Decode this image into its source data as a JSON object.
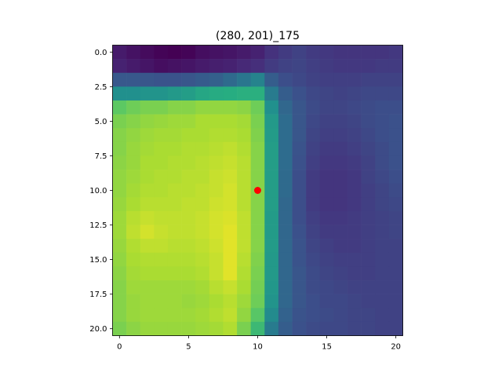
{
  "chart_data": {
    "type": "heatmap",
    "title": "(280, 201)_175",
    "xlabel": "",
    "ylabel": "",
    "colormap": "viridis",
    "vmin": 0.0,
    "vmax": 1.0,
    "x_range": [
      -0.5,
      20.5
    ],
    "y_range": [
      20.5,
      -0.5
    ],
    "x_ticks": [
      0,
      5,
      10,
      15,
      20
    ],
    "x_tick_labels": [
      "0",
      "5",
      "10",
      "15",
      "20"
    ],
    "y_ticks": [
      0.0,
      2.5,
      5.0,
      7.5,
      10.0,
      12.5,
      15.0,
      17.5,
      20.0
    ],
    "y_tick_labels": [
      "0.0",
      "2.5",
      "5.0",
      "7.5",
      "10.0",
      "12.5",
      "15.0",
      "17.5",
      "20.0"
    ],
    "grid": false,
    "marker": {
      "x": 10,
      "y": 10,
      "color": "#ff0000"
    },
    "values": [
      [
        0.08,
        0.05,
        0.03,
        0.01,
        0.0,
        0.01,
        0.04,
        0.05,
        0.06,
        0.08,
        0.1,
        0.15,
        0.18,
        0.2,
        0.18,
        0.17,
        0.16,
        0.16,
        0.16,
        0.16,
        0.17
      ],
      [
        0.1,
        0.08,
        0.06,
        0.04,
        0.05,
        0.06,
        0.08,
        0.09,
        0.1,
        0.12,
        0.14,
        0.18,
        0.2,
        0.21,
        0.19,
        0.18,
        0.17,
        0.17,
        0.17,
        0.18,
        0.18
      ],
      [
        0.28,
        0.28,
        0.27,
        0.26,
        0.26,
        0.27,
        0.29,
        0.31,
        0.35,
        0.4,
        0.45,
        0.3,
        0.24,
        0.22,
        0.2,
        0.19,
        0.19,
        0.19,
        0.2,
        0.2,
        0.2
      ],
      [
        0.5,
        0.5,
        0.52,
        0.52,
        0.54,
        0.56,
        0.6,
        0.62,
        0.63,
        0.64,
        0.64,
        0.42,
        0.3,
        0.25,
        0.22,
        0.21,
        0.2,
        0.21,
        0.22,
        0.22,
        0.22
      ],
      [
        0.75,
        0.78,
        0.8,
        0.8,
        0.82,
        0.82,
        0.84,
        0.84,
        0.84,
        0.83,
        0.78,
        0.5,
        0.34,
        0.27,
        0.23,
        0.21,
        0.21,
        0.22,
        0.23,
        0.24,
        0.24
      ],
      [
        0.8,
        0.82,
        0.84,
        0.85,
        0.86,
        0.86,
        0.88,
        0.88,
        0.88,
        0.87,
        0.8,
        0.54,
        0.36,
        0.27,
        0.22,
        0.2,
        0.2,
        0.21,
        0.23,
        0.24,
        0.25
      ],
      [
        0.82,
        0.84,
        0.86,
        0.87,
        0.87,
        0.88,
        0.88,
        0.89,
        0.89,
        0.88,
        0.81,
        0.55,
        0.36,
        0.27,
        0.21,
        0.19,
        0.19,
        0.2,
        0.22,
        0.24,
        0.25
      ],
      [
        0.82,
        0.85,
        0.87,
        0.88,
        0.88,
        0.89,
        0.89,
        0.9,
        0.91,
        0.89,
        0.82,
        0.56,
        0.36,
        0.26,
        0.2,
        0.18,
        0.18,
        0.19,
        0.21,
        0.23,
        0.25
      ],
      [
        0.83,
        0.85,
        0.88,
        0.88,
        0.89,
        0.89,
        0.9,
        0.91,
        0.92,
        0.9,
        0.82,
        0.56,
        0.36,
        0.25,
        0.19,
        0.17,
        0.17,
        0.18,
        0.2,
        0.23,
        0.25
      ],
      [
        0.84,
        0.86,
        0.88,
        0.89,
        0.89,
        0.9,
        0.9,
        0.92,
        0.93,
        0.9,
        0.82,
        0.56,
        0.35,
        0.24,
        0.18,
        0.16,
        0.16,
        0.17,
        0.2,
        0.22,
        0.24
      ],
      [
        0.84,
        0.87,
        0.89,
        0.89,
        0.9,
        0.9,
        0.91,
        0.92,
        0.94,
        0.9,
        0.82,
        0.56,
        0.35,
        0.24,
        0.18,
        0.16,
        0.16,
        0.17,
        0.19,
        0.21,
        0.23
      ],
      [
        0.85,
        0.88,
        0.9,
        0.9,
        0.9,
        0.91,
        0.91,
        0.93,
        0.94,
        0.9,
        0.82,
        0.56,
        0.34,
        0.24,
        0.18,
        0.16,
        0.16,
        0.17,
        0.19,
        0.21,
        0.22
      ],
      [
        0.86,
        0.9,
        0.92,
        0.91,
        0.91,
        0.91,
        0.92,
        0.94,
        0.95,
        0.91,
        0.82,
        0.55,
        0.34,
        0.24,
        0.19,
        0.17,
        0.17,
        0.18,
        0.19,
        0.2,
        0.21
      ],
      [
        0.86,
        0.91,
        0.94,
        0.92,
        0.91,
        0.91,
        0.92,
        0.94,
        0.96,
        0.91,
        0.82,
        0.55,
        0.34,
        0.25,
        0.2,
        0.18,
        0.18,
        0.18,
        0.19,
        0.2,
        0.21
      ],
      [
        0.85,
        0.89,
        0.91,
        0.91,
        0.9,
        0.9,
        0.91,
        0.93,
        0.96,
        0.91,
        0.82,
        0.55,
        0.34,
        0.26,
        0.21,
        0.19,
        0.18,
        0.18,
        0.19,
        0.2,
        0.2
      ],
      [
        0.84,
        0.88,
        0.89,
        0.89,
        0.89,
        0.89,
        0.9,
        0.92,
        0.96,
        0.9,
        0.81,
        0.54,
        0.34,
        0.26,
        0.22,
        0.2,
        0.19,
        0.19,
        0.19,
        0.2,
        0.2
      ],
      [
        0.83,
        0.87,
        0.88,
        0.88,
        0.88,
        0.88,
        0.89,
        0.92,
        0.96,
        0.89,
        0.8,
        0.54,
        0.34,
        0.27,
        0.23,
        0.21,
        0.2,
        0.19,
        0.19,
        0.2,
        0.2
      ],
      [
        0.82,
        0.86,
        0.86,
        0.86,
        0.86,
        0.86,
        0.87,
        0.9,
        0.92,
        0.88,
        0.79,
        0.53,
        0.34,
        0.27,
        0.23,
        0.22,
        0.21,
        0.2,
        0.2,
        0.2,
        0.2
      ],
      [
        0.82,
        0.85,
        0.86,
        0.86,
        0.86,
        0.85,
        0.86,
        0.88,
        0.9,
        0.86,
        0.78,
        0.52,
        0.34,
        0.27,
        0.24,
        0.22,
        0.22,
        0.21,
        0.2,
        0.2,
        0.2
      ],
      [
        0.82,
        0.85,
        0.86,
        0.86,
        0.86,
        0.86,
        0.87,
        0.89,
        0.91,
        0.84,
        0.74,
        0.48,
        0.32,
        0.26,
        0.24,
        0.23,
        0.22,
        0.21,
        0.21,
        0.2,
        0.2
      ],
      [
        0.8,
        0.83,
        0.85,
        0.85,
        0.85,
        0.85,
        0.86,
        0.87,
        0.89,
        0.8,
        0.68,
        0.42,
        0.3,
        0.25,
        0.23,
        0.22,
        0.22,
        0.21,
        0.21,
        0.2,
        0.2
      ]
    ]
  }
}
